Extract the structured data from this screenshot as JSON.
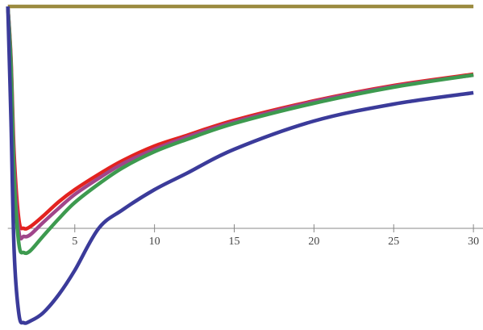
{
  "chart_data": {
    "type": "line",
    "x": [
      0.8,
      1,
      1.2,
      1.5,
      1.8,
      2.2,
      3,
      4,
      5,
      6.5,
      8,
      10,
      12,
      15,
      20,
      25,
      30
    ],
    "series": [
      {
        "color": "#9b8b3f",
        "values": [
          2.75,
          2.75,
          2.75,
          2.75,
          2.75,
          2.75,
          2.75,
          2.75,
          2.75,
          2.75,
          2.75,
          2.75,
          2.75,
          2.75,
          2.75,
          2.75,
          2.75
        ]
      },
      {
        "color": "#e3221f",
        "values": [
          2.75,
          2.1,
          0.9,
          0.1,
          0.0,
          0.02,
          0.15,
          0.33,
          0.48,
          0.67,
          0.84,
          1.02,
          1.15,
          1.34,
          1.58,
          1.77,
          1.91
        ]
      },
      {
        "color": "#a0458a",
        "values": [
          2.75,
          2.05,
          0.75,
          -0.05,
          -0.1,
          -0.08,
          0.07,
          0.25,
          0.42,
          0.62,
          0.8,
          0.98,
          1.13,
          1.32,
          1.57,
          1.76,
          1.9
        ]
      },
      {
        "color": "#3d9a4f",
        "values": [
          2.75,
          2.0,
          0.6,
          -0.2,
          -0.3,
          -0.28,
          -0.1,
          0.12,
          0.32,
          0.55,
          0.75,
          0.95,
          1.1,
          1.3,
          1.55,
          1.75,
          1.9
        ]
      },
      {
        "color": "#3b3b9a",
        "values": [
          2.75,
          1.33,
          -0.3,
          -1.07,
          -1.17,
          -1.15,
          -1.05,
          -0.82,
          -0.52,
          0,
          0.23,
          0.48,
          0.68,
          0.98,
          1.33,
          1.54,
          1.68
        ]
      }
    ],
    "xlim": [
      0.8,
      30.6
    ],
    "ylim": [
      -1.2,
      2.8
    ],
    "xticks": [
      5,
      10,
      15,
      20,
      25,
      30
    ]
  }
}
